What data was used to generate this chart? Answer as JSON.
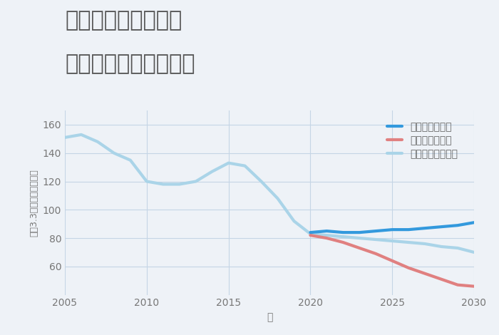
{
  "title_line1": "兵庫県播磨高岡駅の",
  "title_line2": "中古戸建ての価格推移",
  "xlabel": "年",
  "ylabel": "坪（3.3㎡）単価（万円）",
  "background_color": "#eef2f7",
  "plot_bg_color": "#eef2f7",
  "ylim": [
    40,
    170
  ],
  "yticks": [
    60,
    80,
    100,
    120,
    140,
    160
  ],
  "good_scenario": {
    "label": "グッドシナリオ",
    "color": "#3399dd",
    "years": [
      2020,
      2021,
      2022,
      2023,
      2024,
      2025,
      2026,
      2027,
      2028,
      2029,
      2030
    ],
    "values": [
      84,
      85,
      84,
      84,
      85,
      86,
      86,
      87,
      88,
      89,
      91
    ]
  },
  "bad_scenario": {
    "label": "バッドシナリオ",
    "color": "#e08080",
    "years": [
      2020,
      2021,
      2022,
      2023,
      2024,
      2025,
      2026,
      2027,
      2028,
      2029,
      2030
    ],
    "values": [
      82,
      80,
      77,
      73,
      69,
      64,
      59,
      55,
      51,
      47,
      46
    ]
  },
  "normal_scenario": {
    "label": "ノーマルシナリオ",
    "color": "#aad4e8",
    "years": [
      2005,
      2006,
      2007,
      2008,
      2009,
      2010,
      2011,
      2012,
      2013,
      2014,
      2015,
      2016,
      2017,
      2018,
      2019,
      2020,
      2021,
      2022,
      2023,
      2024,
      2025,
      2026,
      2027,
      2028,
      2029,
      2030
    ],
    "values": [
      151,
      153,
      148,
      140,
      135,
      120,
      118,
      118,
      120,
      127,
      133,
      131,
      120,
      108,
      92,
      83,
      82,
      81,
      80,
      79,
      78,
      77,
      76,
      74,
      73,
      70
    ]
  },
  "xticks": [
    2005,
    2010,
    2015,
    2020,
    2025,
    2030
  ],
  "title_fontsize": 22,
  "axis_fontsize": 10,
  "legend_fontsize": 10,
  "line_width": 2.5
}
